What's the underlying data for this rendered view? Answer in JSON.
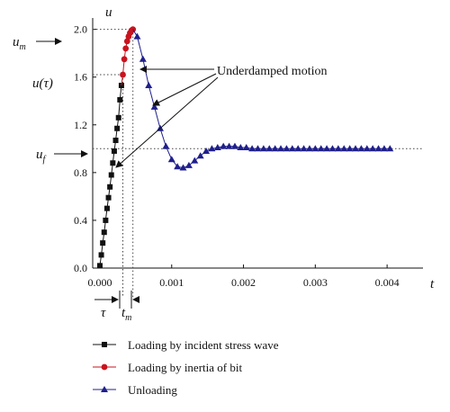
{
  "chart_data": {
    "type": "line",
    "xlabel": "t",
    "ylabel": "u",
    "xlim": [
      -0.0001,
      0.0045
    ],
    "ylim": [
      0.0,
      2.08
    ],
    "grid": false,
    "x_ticks": [
      0.0,
      0.001,
      0.002,
      0.003,
      0.004
    ],
    "x_tick_labels": [
      "0.000",
      "0.001",
      "0.002",
      "0.003",
      "0.004"
    ],
    "y_ticks": [
      0.0,
      0.4,
      0.8,
      1.2,
      1.6,
      2.0
    ],
    "y_tick_labels": [
      "0.0",
      "0.4",
      "0.8",
      "1.2",
      "1.6",
      "2.0"
    ],
    "legend_position": "bottom",
    "series": [
      {
        "name": "Loading by incident stress wave",
        "color": "#111111",
        "marker": "square",
        "x": [
          0.0,
          2e-05,
          4e-05,
          6e-05,
          8e-05,
          0.0001,
          0.00012,
          0.00014,
          0.00016,
          0.00018,
          0.0002,
          0.00022,
          0.00024,
          0.00026,
          0.00028,
          0.0003
        ],
        "y": [
          0.02,
          0.11,
          0.21,
          0.3,
          0.4,
          0.5,
          0.59,
          0.68,
          0.78,
          0.88,
          0.98,
          1.07,
          1.17,
          1.26,
          1.41,
          1.53
        ]
      },
      {
        "name": "Loading by inertia of bit",
        "color": "#c8141e",
        "marker": "circle",
        "x": [
          0.00032,
          0.00034,
          0.00036,
          0.00038,
          0.0004,
          0.00042,
          0.00044,
          0.00046
        ],
        "y": [
          1.62,
          1.75,
          1.84,
          1.9,
          1.94,
          1.97,
          1.99,
          2.0
        ]
      },
      {
        "name": "Unloading",
        "color": "#1f1f8c",
        "marker": "triangle",
        "x": [
          0.00052,
          0.0006,
          0.00068,
          0.00076,
          0.00084,
          0.00092,
          0.001,
          0.00108,
          0.00116,
          0.00124,
          0.00132,
          0.0014,
          0.00148,
          0.00156,
          0.00164,
          0.00172,
          0.0018,
          0.00188,
          0.00196,
          0.00204,
          0.00212,
          0.0022,
          0.00228,
          0.00236,
          0.00244,
          0.00252,
          0.0026,
          0.00268,
          0.00276,
          0.00284,
          0.00292,
          0.003,
          0.00308,
          0.00316,
          0.00324,
          0.00332,
          0.0034,
          0.00348,
          0.00356,
          0.00364,
          0.00372,
          0.0038,
          0.00388,
          0.00396,
          0.00404
        ],
        "y": [
          1.94,
          1.75,
          1.53,
          1.35,
          1.17,
          1.02,
          0.91,
          0.85,
          0.84,
          0.86,
          0.9,
          0.94,
          0.98,
          1.0,
          1.01,
          1.02,
          1.02,
          1.02,
          1.01,
          1.01,
          1.0,
          1.0,
          1.0,
          1.0,
          1.0,
          1.0,
          1.0,
          1.0,
          1.0,
          1.0,
          1.0,
          1.0,
          1.0,
          1.0,
          1.0,
          1.0,
          1.0,
          1.0,
          1.0,
          1.0,
          1.0,
          1.0,
          1.0,
          1.0,
          1.0
        ]
      }
    ],
    "reference_lines": {
      "u_f": 1.0,
      "u_m": 2.0,
      "u_tau": 1.62,
      "tau": 0.00032,
      "t_m": 0.00046
    },
    "annotations": {
      "underdamped": "Underdamped motion",
      "u_m_label": "u",
      "u_m_sub": "m",
      "u_tau_label": "u(τ)",
      "u_f_label": "u",
      "u_f_sub": "f",
      "tau_label": "τ",
      "t_m_label": "t",
      "t_m_sub": "m"
    }
  }
}
